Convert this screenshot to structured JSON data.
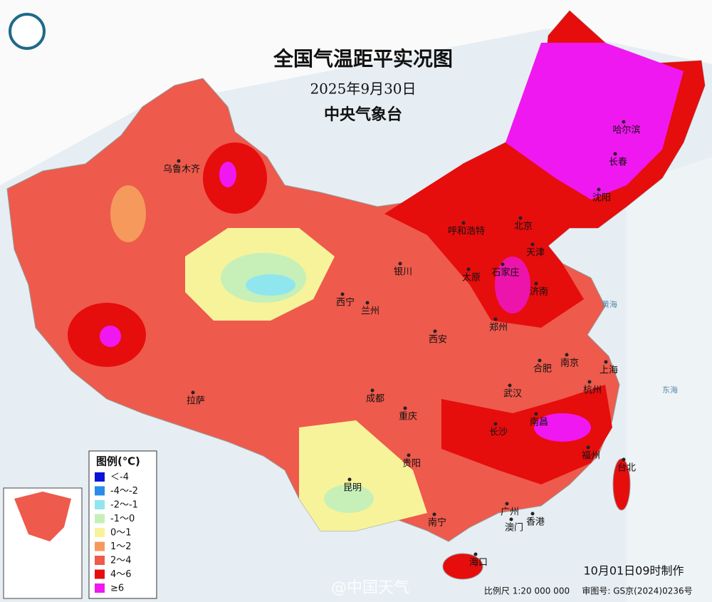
{
  "header": {
    "title": "全国气温距平实况图",
    "date": "2025年9月30日",
    "issuer": "中央气象台"
  },
  "legend": {
    "title": "图例(℃)",
    "items": [
      {
        "label": "＜-4",
        "color": "#0a14d8"
      },
      {
        "label": "-4～-2",
        "color": "#2a8be8"
      },
      {
        "label": "-2～-1",
        "color": "#8fe6ee"
      },
      {
        "label": "-1～0",
        "color": "#c6f0b8"
      },
      {
        "label": "0～1",
        "color": "#f7f39a"
      },
      {
        "label": "1～2",
        "color": "#f59a5c"
      },
      {
        "label": "2～4",
        "color": "#ee5a4c"
      },
      {
        "label": "4～6",
        "color": "#e60d0d"
      },
      {
        "label": "≥6",
        "color": "#f018f0"
      }
    ]
  },
  "cities": [
    "乌鲁木齐",
    "哈尔滨",
    "长春",
    "沈阳",
    "呼和浩特",
    "北京",
    "天津",
    "石家庄",
    "太原",
    "济南",
    "银川",
    "西宁",
    "兰州",
    "郑州",
    "西安",
    "合肥",
    "南京",
    "上海",
    "杭州",
    "武汉",
    "成都",
    "重庆",
    "长沙",
    "南昌",
    "拉萨",
    "福州",
    "台北",
    "贵阳",
    "昆明",
    "南宁",
    "广州",
    "香港",
    "澳门",
    "海口"
  ],
  "seas": [
    "黄海",
    "东海"
  ],
  "footer": {
    "made": "10月01日09时制作",
    "scale": "比例尺 1:20 000 000",
    "approval": "审图号: GS京(2024)0236号",
    "watermark": "@中国天气"
  }
}
